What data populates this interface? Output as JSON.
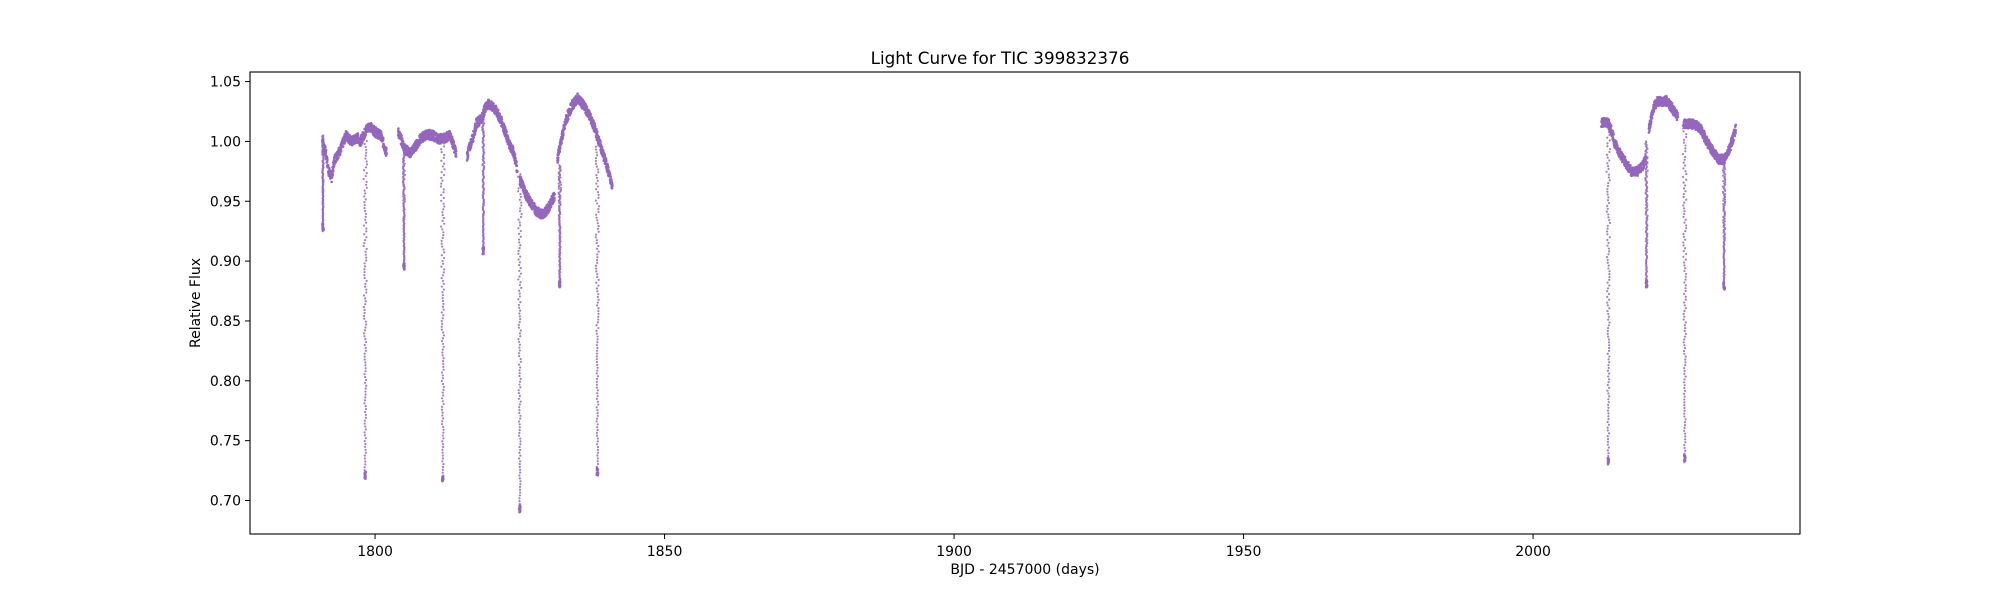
{
  "chart_data": {
    "type": "scatter",
    "title": "Light Curve for TIC 399832376",
    "xlabel": "BJD - 2457000 (days)",
    "ylabel": "Relative Flux",
    "xlim": [
      1778.4,
      2046.1
    ],
    "ylim": [
      0.672,
      1.058
    ],
    "xticks": [
      1800,
      1850,
      1900,
      1950,
      2000
    ],
    "yticks": [
      0.7,
      0.75,
      0.8,
      0.85,
      0.9,
      0.95,
      1.0,
      1.05
    ],
    "xtick_labels": [
      "1800",
      "1850",
      "1900",
      "1950",
      "2000"
    ],
    "ytick_labels": [
      "0.70",
      "0.75",
      "0.80",
      "0.85",
      "0.90",
      "0.95",
      "1.00",
      "1.05"
    ],
    "grid": false,
    "legend": false,
    "series": [
      {
        "color": "#9467bd",
        "segments": [
          {
            "x": [
              1790.9,
              1791.5,
              1792.0,
              1792.5,
              1793.0,
              1794.0,
              1795.0,
              1796.0,
              1797.0,
              1797.5,
              1798.5,
              1799.0,
              1800.0,
              1801.0,
              1802.0
            ],
            "y": [
              1.0,
              0.99,
              0.975,
              0.97,
              0.985,
              0.993,
              1.005,
              1.0,
              1.003,
              1.0,
              1.01,
              1.013,
              1.008,
              1.005,
              0.99
            ]
          },
          {
            "x": [
              1804.0,
              1805.0,
              1806.0,
              1807.0,
              1808.0,
              1809.0,
              1810.0,
              1811.0,
              1812.0,
              1813.0,
              1814.0
            ],
            "y": [
              1.008,
              0.995,
              0.99,
              0.996,
              1.003,
              1.006,
              1.005,
              1.002,
              1.003,
              1.005,
              0.99
            ]
          },
          {
            "x": [
              1815.9,
              1816.5,
              1817.0,
              1817.5,
              1818.5,
              1819.0,
              1819.5,
              1820.0,
              1821.0,
              1822.0,
              1823.0,
              1824.0,
              1824.5
            ],
            "y": [
              0.988,
              0.998,
              1.005,
              1.015,
              1.02,
              1.028,
              1.031,
              1.03,
              1.025,
              1.015,
              1.0,
              0.99,
              0.978
            ]
          },
          {
            "x": [
              1825.0,
              1825.5,
              1826.0,
              1827.0,
              1828.0,
              1829.0,
              1830.0,
              1831.0
            ],
            "y": [
              0.968,
              0.963,
              0.956,
              0.948,
              0.941,
              0.939,
              0.945,
              0.955
            ]
          },
          {
            "x": [
              1831.5,
              1832.0,
              1832.5,
              1833.0,
              1834.0,
              1835.0,
              1836.0,
              1837.0,
              1838.0,
              1839.0,
              1840.0,
              1841.0
            ],
            "y": [
              0.985,
              0.998,
              1.008,
              1.018,
              1.03,
              1.036,
              1.03,
              1.022,
              1.01,
              0.995,
              0.98,
              0.962
            ]
          },
          {
            "x": [
              2011.8,
              2012.5,
              2013.0,
              2013.5,
              2014.0,
              2015.0,
              2016.0,
              2017.0,
              2018.0,
              2019.0,
              2019.5
            ],
            "y": [
              1.016,
              1.016,
              1.015,
              1.01,
              1.0,
              0.99,
              0.982,
              0.975,
              0.975,
              0.98,
              0.985
            ]
          },
          {
            "x": [
              2020.0,
              2020.5,
              2021.0,
              2021.5,
              2022.0,
              2023.0,
              2024.0,
              2025.0
            ],
            "y": [
              1.01,
              1.022,
              1.03,
              1.034,
              1.033,
              1.034,
              1.028,
              1.02
            ]
          },
          {
            "x": [
              2026.0,
              2027.0,
              2028.0,
              2029.0,
              2030.0,
              2031.0,
              2032.0,
              2033.0,
              2034.0,
              2035.0
            ],
            "y": [
              1.015,
              1.015,
              1.014,
              1.01,
              1.0,
              0.992,
              0.985,
              0.985,
              0.995,
              1.01
            ]
          }
        ],
        "eclipses": [
          {
            "center": 1791.0,
            "depth": 0.925,
            "top": 1.005,
            "halfwidth": 0.15
          },
          {
            "center": 1798.3,
            "depth": 0.718,
            "top": 1.01,
            "halfwidth": 0.35
          },
          {
            "center": 1805.0,
            "depth": 0.893,
            "top": 0.995,
            "halfwidth": 0.2
          },
          {
            "center": 1811.7,
            "depth": 0.716,
            "top": 1.003,
            "halfwidth": 0.35
          },
          {
            "center": 1818.7,
            "depth": 0.906,
            "top": 1.02,
            "halfwidth": 0.2
          },
          {
            "center": 1825.0,
            "depth": 0.69,
            "top": 0.975,
            "halfwidth": 0.35
          },
          {
            "center": 1831.9,
            "depth": 0.878,
            "top": 0.98,
            "halfwidth": 0.25
          },
          {
            "center": 1838.4,
            "depth": 0.721,
            "top": 1.005,
            "halfwidth": 0.35
          },
          {
            "center": 2013.0,
            "depth": 0.73,
            "top": 1.015,
            "halfwidth": 0.35
          },
          {
            "center": 2019.6,
            "depth": 0.878,
            "top": 1.0,
            "halfwidth": 0.25
          },
          {
            "center": 2026.2,
            "depth": 0.732,
            "top": 1.018,
            "halfwidth": 0.35
          },
          {
            "center": 2033.0,
            "depth": 0.876,
            "top": 0.985,
            "halfwidth": 0.25
          }
        ]
      }
    ]
  }
}
